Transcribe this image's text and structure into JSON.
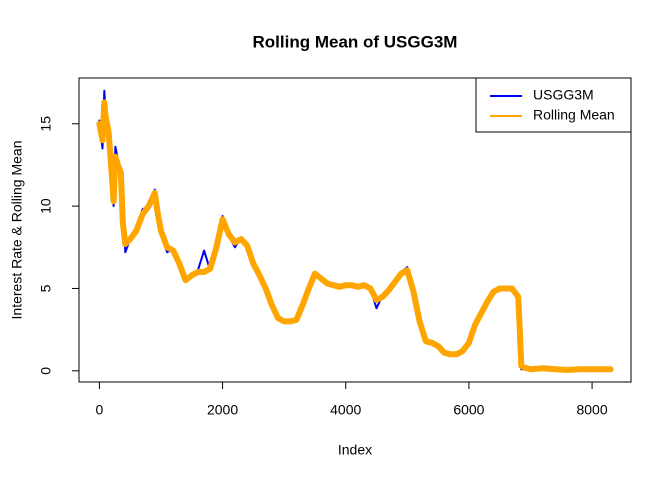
{
  "chart_data": {
    "type": "line",
    "title": "Rolling Mean of USGG3M",
    "xlabel": "Index",
    "ylabel": "Interest Rate & Rolling Mean",
    "x": [
      0,
      50,
      80,
      100,
      150,
      200,
      230,
      260,
      300,
      350,
      380,
      420,
      500,
      600,
      700,
      800,
      900,
      950,
      1000,
      1100,
      1200,
      1300,
      1400,
      1500,
      1600,
      1700,
      1800,
      1900,
      2000,
      2100,
      2200,
      2300,
      2400,
      2500,
      2600,
      2700,
      2800,
      2900,
      3000,
      3100,
      3200,
      3300,
      3400,
      3500,
      3600,
      3700,
      3800,
      3900,
      4000,
      4100,
      4200,
      4300,
      4400,
      4500,
      4600,
      4700,
      4800,
      4900,
      5000,
      5100,
      5200,
      5300,
      5400,
      5500,
      5600,
      5700,
      5800,
      5900,
      6000,
      6100,
      6200,
      6300,
      6400,
      6500,
      6600,
      6700,
      6800,
      6820,
      6850,
      6900,
      7000,
      7200,
      7400,
      7600,
      7800,
      8000,
      8300
    ],
    "series": [
      {
        "name": "USGG3M",
        "color": "#0000ff",
        "values": [
          15.2,
          13.5,
          17.0,
          15.8,
          14.0,
          12.5,
          10.0,
          13.6,
          12.8,
          11.8,
          9.5,
          7.2,
          8.0,
          8.6,
          9.8,
          10.0,
          11.0,
          9.3,
          8.3,
          7.2,
          7.4,
          6.3,
          5.4,
          5.9,
          6.1,
          7.3,
          6.1,
          7.6,
          9.4,
          8.2,
          7.5,
          8.1,
          7.7,
          6.4,
          5.7,
          5.0,
          3.9,
          3.1,
          2.9,
          3.0,
          3.2,
          4.1,
          5.0,
          6.0,
          5.6,
          5.3,
          5.2,
          5.0,
          5.3,
          5.2,
          5.0,
          5.3,
          5.0,
          3.8,
          4.6,
          4.9,
          5.5,
          6.0,
          6.3,
          4.6,
          2.9,
          1.8,
          1.7,
          1.4,
          1.0,
          1.0,
          0.9,
          1.2,
          1.8,
          2.9,
          3.5,
          4.3,
          4.9,
          5.0,
          5.1,
          5.0,
          4.6,
          3.0,
          0.1,
          0.1,
          0.05,
          0.2,
          0.1,
          0.03,
          0.1,
          0.1,
          0.08
        ]
      },
      {
        "name": "Rolling Mean",
        "color": "#ffa500",
        "values": [
          15.0,
          14.0,
          16.3,
          15.5,
          14.5,
          12.0,
          10.3,
          13.0,
          12.5,
          12.0,
          9.0,
          7.7,
          8.0,
          8.5,
          9.5,
          10.0,
          10.8,
          9.5,
          8.5,
          7.5,
          7.3,
          6.5,
          5.5,
          5.8,
          6.0,
          6.0,
          6.2,
          7.5,
          9.2,
          8.3,
          7.8,
          8.0,
          7.6,
          6.5,
          5.8,
          5.0,
          4.0,
          3.2,
          3.0,
          3.0,
          3.1,
          4.0,
          5.0,
          5.9,
          5.6,
          5.3,
          5.2,
          5.1,
          5.2,
          5.2,
          5.1,
          5.2,
          5.0,
          4.3,
          4.5,
          4.9,
          5.4,
          5.9,
          6.1,
          4.8,
          3.0,
          1.8,
          1.7,
          1.5,
          1.1,
          1.0,
          1.0,
          1.2,
          1.7,
          2.8,
          3.5,
          4.2,
          4.8,
          5.0,
          5.0,
          5.0,
          4.5,
          3.0,
          0.3,
          0.2,
          0.1,
          0.15,
          0.1,
          0.05,
          0.1,
          0.1,
          0.1
        ]
      }
    ],
    "xlim": [
      -331,
      8632
    ],
    "ylim": [
      -0.68,
      17.78
    ],
    "xticks": [
      0,
      2000,
      4000,
      6000,
      8000
    ],
    "yticks": [
      0,
      5,
      10,
      15
    ],
    "legend": "topright"
  }
}
